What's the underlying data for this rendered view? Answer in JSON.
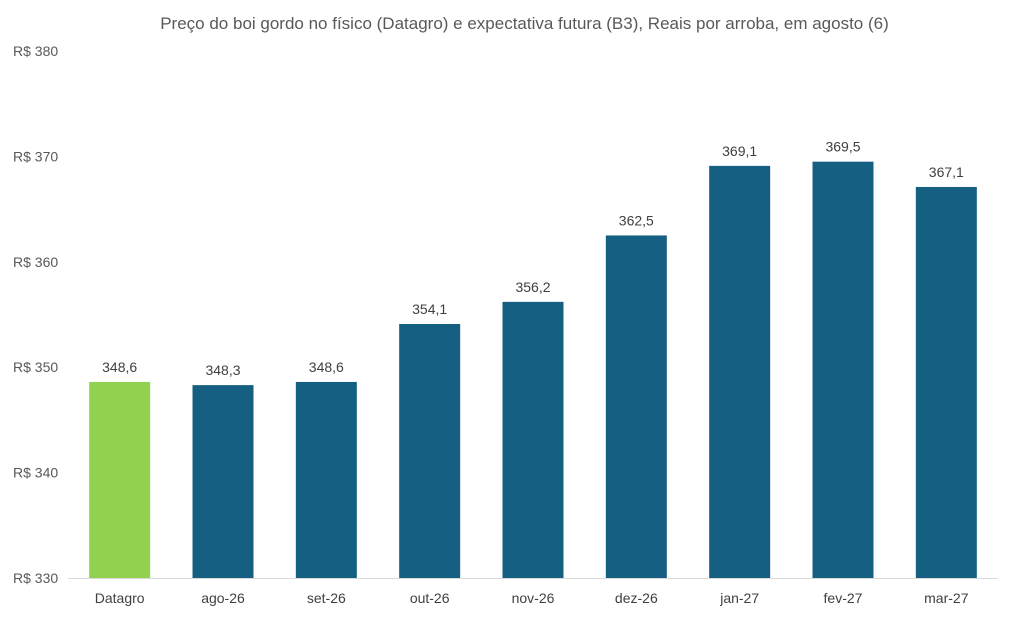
{
  "chart_data": {
    "type": "bar",
    "title": "Preço do boi gordo no físico (Datagro)  e expectativa futura (B3), Reais por arroba, em agosto (6)",
    "categories": [
      "Datagro",
      "ago-26",
      "set-26",
      "out-26",
      "nov-26",
      "dez-26",
      "jan-27",
      "fev-27",
      "mar-27"
    ],
    "values": [
      348.6,
      348.3,
      348.6,
      354.1,
      356.2,
      362.5,
      369.1,
      369.5,
      367.1
    ],
    "data_labels": [
      "348,6",
      "348,3",
      "348,6",
      "354,1",
      "356,2",
      "362,5",
      "369,1",
      "369,5",
      "367,1"
    ],
    "bar_colors": [
      "#92D050",
      "#156082",
      "#156082",
      "#156082",
      "#156082",
      "#156082",
      "#156082",
      "#156082",
      "#156082"
    ],
    "ylim": [
      330,
      380
    ],
    "yticks": [
      330,
      340,
      350,
      360,
      370,
      380
    ],
    "ytick_labels": [
      "R$ 330",
      "R$ 340",
      "R$ 350",
      "R$ 360",
      "R$ 370",
      "R$ 380"
    ],
    "xlabel": "",
    "ylabel": "",
    "grid": false,
    "legend": "none"
  }
}
